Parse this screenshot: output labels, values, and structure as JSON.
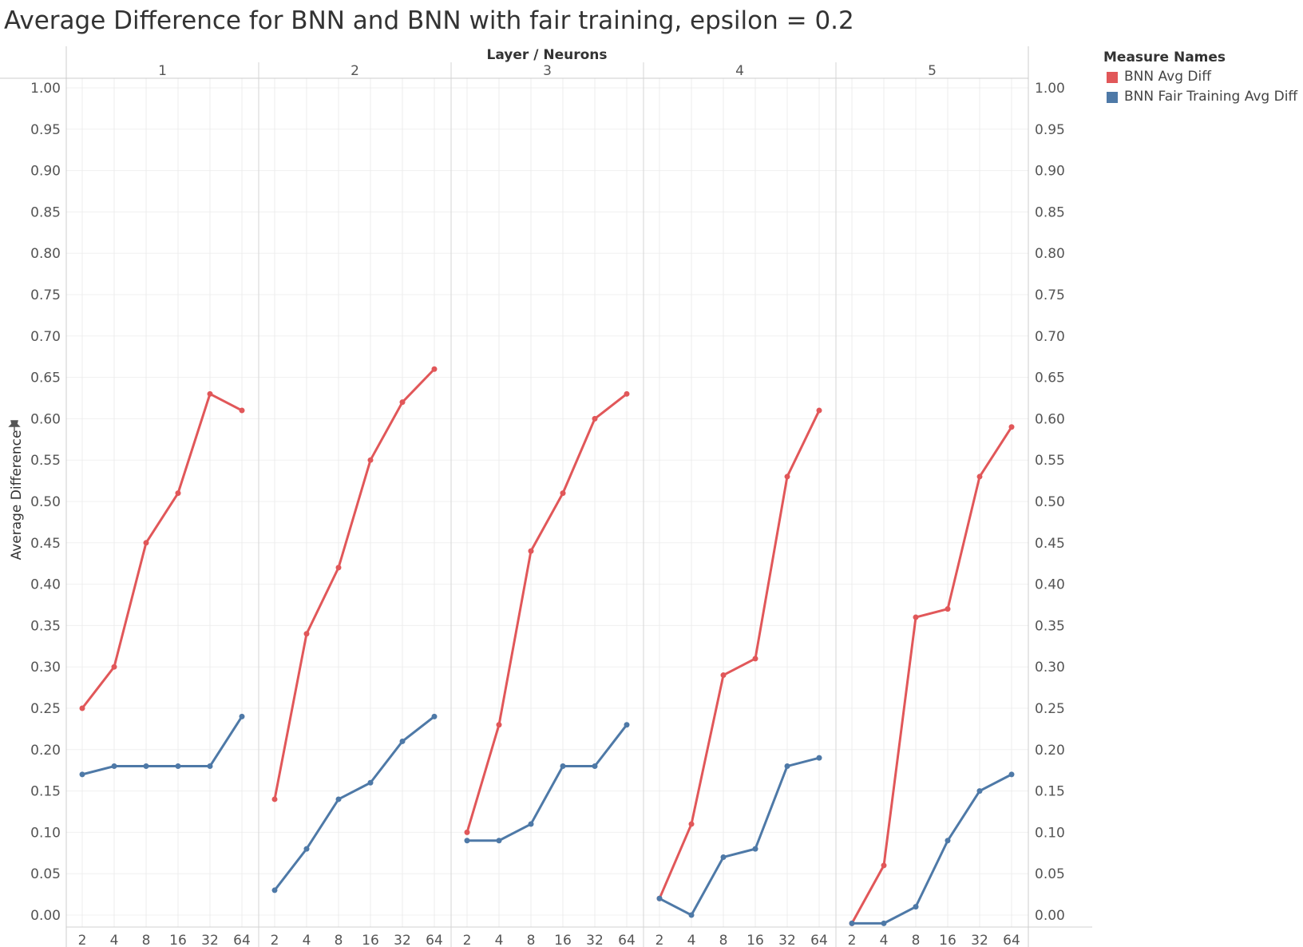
{
  "chart_data": {
    "type": "line",
    "title": "Average Difference for BNN and BNN with fair training, epsilon = 0.2",
    "column_header": "Layer / Neurons",
    "panels": [
      "1",
      "2",
      "3",
      "4",
      "5"
    ],
    "categories": [
      "2",
      "4",
      "8",
      "16",
      "32",
      "64"
    ],
    "ylabel": "Average Difference",
    "ylabel_icon": "pin-icon",
    "ylim": [
      0,
      1
    ],
    "yticks": [
      "1.00",
      "0.95",
      "0.90",
      "0.85",
      "0.80",
      "0.75",
      "0.70",
      "0.65",
      "0.60",
      "0.55",
      "0.50",
      "0.45",
      "0.40",
      "0.35",
      "0.30",
      "0.25",
      "0.20",
      "0.15",
      "0.10",
      "0.05",
      "0.00"
    ],
    "grid": true,
    "legend": {
      "title": "Measure Names",
      "position": "right",
      "items": [
        {
          "label": "BNN Avg Diff",
          "color": "#e15759"
        },
        {
          "label": "BNN Fair Training Avg Diff",
          "color": "#4e79a7"
        }
      ]
    },
    "series": [
      {
        "name": "BNN Avg Diff",
        "color": "#e15759",
        "values": [
          [
            0.25,
            0.3,
            0.45,
            0.51,
            0.63,
            0.61
          ],
          [
            0.14,
            0.34,
            0.42,
            0.55,
            0.62,
            0.66
          ],
          [
            0.1,
            0.23,
            0.44,
            0.51,
            0.6,
            0.63
          ],
          [
            0.02,
            0.11,
            0.29,
            0.31,
            0.53,
            0.61
          ],
          [
            -0.01,
            0.06,
            0.36,
            0.37,
            0.53,
            0.59
          ]
        ]
      },
      {
        "name": "BNN Fair Training Avg Diff",
        "color": "#4e79a7",
        "values": [
          [
            0.17,
            0.18,
            0.18,
            0.18,
            0.18,
            0.24
          ],
          [
            0.03,
            0.08,
            0.14,
            0.16,
            0.21,
            0.24
          ],
          [
            0.09,
            0.09,
            0.11,
            0.18,
            0.18,
            0.23
          ],
          [
            0.02,
            0.0,
            0.07,
            0.08,
            0.18,
            0.19
          ],
          [
            -0.01,
            -0.01,
            0.01,
            0.09,
            0.15,
            0.17
          ]
        ]
      }
    ]
  }
}
